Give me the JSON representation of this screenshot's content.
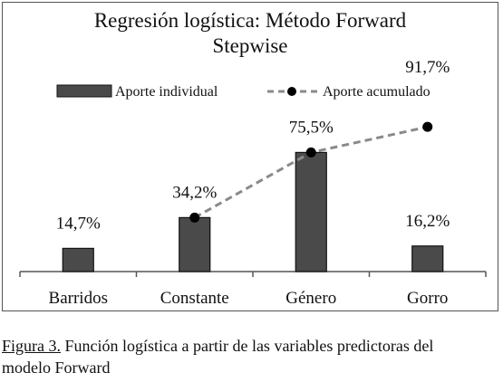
{
  "chart_data": {
    "type": "bar",
    "title_line1": "Regresión logística: Método Forward",
    "title_line2": "Stepwise",
    "categories": [
      "Barridos",
      "Constante",
      "Género",
      "Gorro"
    ],
    "series": [
      {
        "name": "Aporte individual",
        "kind": "bar",
        "values": [
          14.7,
          34.2,
          75.5,
          16.2
        ],
        "labels": [
          "14,7%",
          "34,2%",
          "75,5%",
          "16,2%"
        ]
      },
      {
        "name": "Aporte acumulado",
        "kind": "line",
        "values": [
          null,
          34.2,
          75.5,
          91.7
        ],
        "labels": [
          "",
          "",
          "",
          "91,7%"
        ]
      }
    ],
    "ylim": [
      0,
      100
    ],
    "grid": false,
    "legend": "top",
    "colors": {
      "bar_fill": "#4a4a4a",
      "bar_stroke": "#111111",
      "line": "#8a8a8a",
      "marker": "#000000",
      "frame": "#555555"
    }
  },
  "caption": {
    "figure_label": "Figura 3.",
    "text_line1": " Función logística a partir de las variables predictoras del",
    "text_line2": "modelo Forward"
  }
}
